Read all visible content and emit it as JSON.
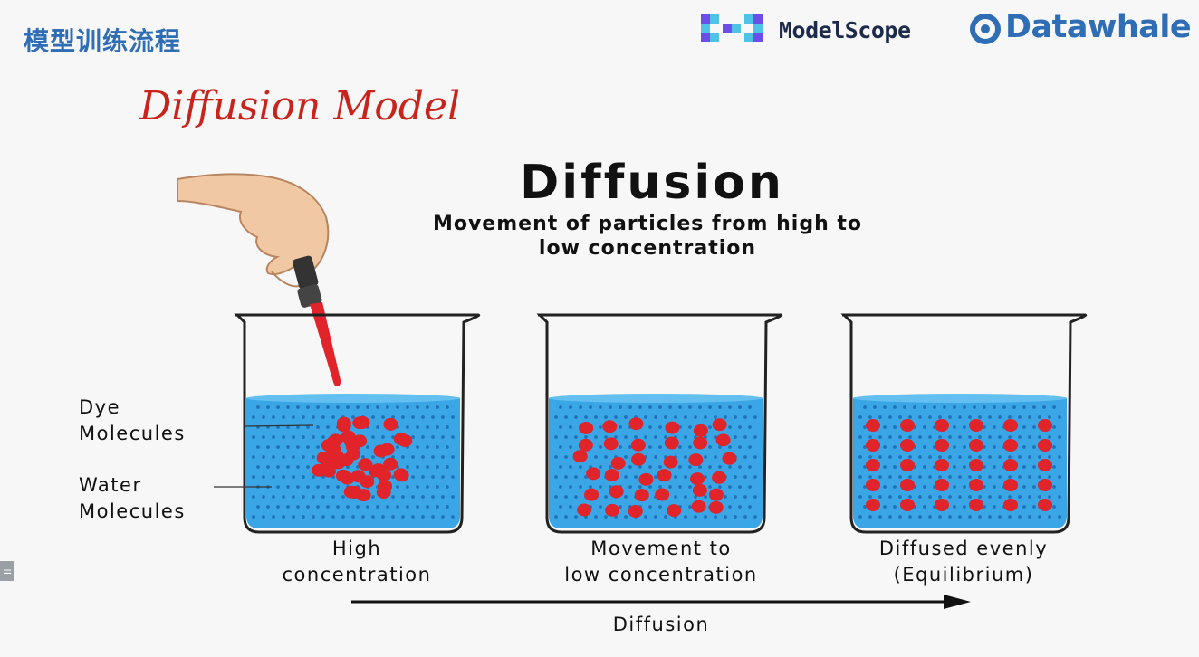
{
  "slide": {
    "title": "模型训练流程"
  },
  "logos": {
    "modelscope": "ModelScope",
    "datawhale": "Datawhale"
  },
  "heading": "Diffusion Model",
  "diagram": {
    "title": "Diffusion",
    "subtitle_line1": "Movement of particles from high to",
    "subtitle_line2": "low concentration",
    "left_labels": {
      "dye_line1": "Dye",
      "dye_line2": "Molecules",
      "water_line1": "Water",
      "water_line2": "Molecules"
    },
    "beakers": [
      {
        "line1": "High",
        "line2": "concentration"
      },
      {
        "line1": "Movement to",
        "line2": "low concentration"
      },
      {
        "line1": "Diffused evenly",
        "line2": "(Equilibrium)"
      }
    ],
    "arrow_label": "Diffusion"
  },
  "colors": {
    "water": "#3aa6e6",
    "water_dot": "#1e73b8",
    "dye": "#e1232a",
    "title_blue": "#2f6db5",
    "heading_red": "#c8241c"
  },
  "icons": {
    "side_tab": "list-icon"
  }
}
